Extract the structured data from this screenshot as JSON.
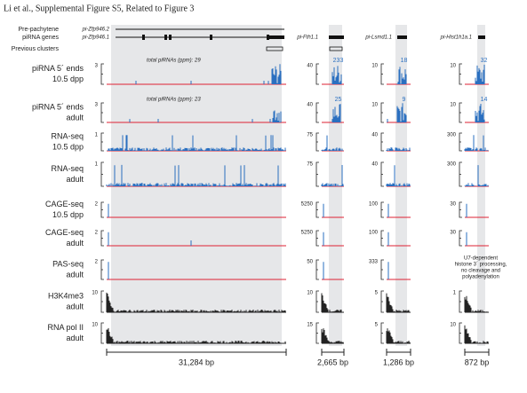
{
  "header": "Li et al., Supplemental Figure S5, Related to Figure 3",
  "row_labels": [
    "Pre-pachytene",
    "piRNA genes",
    "Previous clusters"
  ],
  "genes": [
    "pi-Zfp946.2",
    "pi-Zfp946.1",
    "pi-Fth1.1",
    "pi-Lsmd1.1",
    "pi-Hist1h1a.1"
  ],
  "totals": [
    "total piRNAs (ppm): 29",
    "total piRNAs (ppm): 23"
  ],
  "panel_counts": [
    [
      "233",
      "25"
    ],
    [
      "18",
      "9"
    ],
    [
      "32",
      "14"
    ]
  ],
  "tracks": [
    {
      "label": [
        "piRNA 5´ ends",
        "10.5 dpp"
      ],
      "scales": [
        "3",
        "40",
        "10",
        "10"
      ]
    },
    {
      "label": [
        "piRNA 5´ ends",
        "adult"
      ],
      "scales": [
        "3",
        "40",
        "10",
        "10"
      ]
    },
    {
      "label": [
        "RNA-seq",
        "10.5 dpp"
      ],
      "scales": [
        "1",
        "75",
        "40",
        "300"
      ]
    },
    {
      "label": [
        "RNA-seq",
        "adult"
      ],
      "scales": [
        "1",
        "75",
        "40",
        "300"
      ]
    },
    {
      "label": [
        "CAGE-seq",
        "10.5 dpp"
      ],
      "scales": [
        "2",
        "5250",
        "100",
        "30"
      ]
    },
    {
      "label": [
        "CAGE-seq",
        "adult"
      ],
      "scales": [
        "2",
        "5250",
        "100",
        "30"
      ]
    },
    {
      "label": [
        "PAS-seq",
        "adult"
      ],
      "scales": [
        "2",
        "50",
        "333"
      ]
    },
    {
      "label": [
        "H3K4me3",
        "adult"
      ],
      "scales": [
        "10",
        "10",
        "5",
        "1"
      ]
    },
    {
      "label": [
        "RNA pol II",
        "adult"
      ],
      "scales": [
        "10",
        "15",
        "5",
        "10"
      ]
    }
  ],
  "note": [
    "U7-dependent",
    "histone 3´ processing,",
    "no cleavage and",
    "polyadenylation"
  ],
  "scale_bars": [
    "31,284 bp",
    "2,665 bp",
    "1,286 bp",
    "872 bp"
  ]
}
